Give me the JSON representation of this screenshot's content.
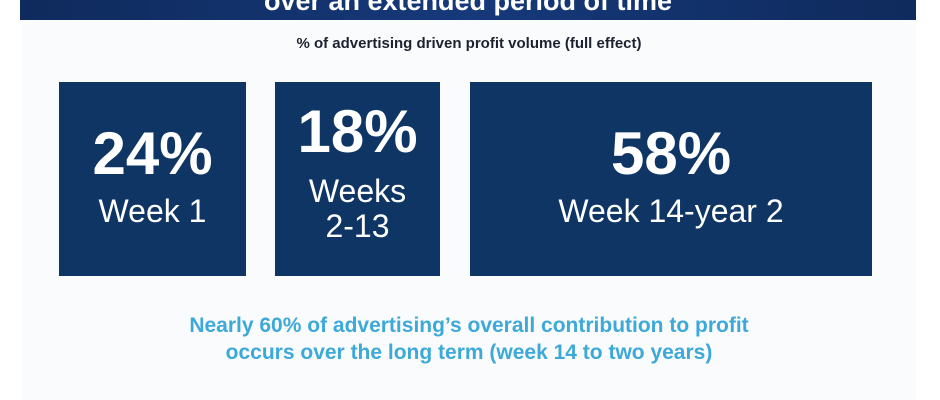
{
  "banner": {
    "title": "over an extended period of time"
  },
  "subtitle": "% of advertising driven profit volume (full effect)",
  "tiles": [
    {
      "value": "24%",
      "label": "Week 1"
    },
    {
      "value": "18%",
      "label": "Weeks\n2-13"
    },
    {
      "value": "58%",
      "label": "Week 14-year 2"
    }
  ],
  "footer": {
    "text": "Nearly 60% of advertising’s overall contribution to profit\noccurs over the long term (week 14 to two years)"
  },
  "colors": {
    "tile_background": "#0f3565",
    "banner_background": "#16397a",
    "accent_text": "#3da9d9"
  }
}
